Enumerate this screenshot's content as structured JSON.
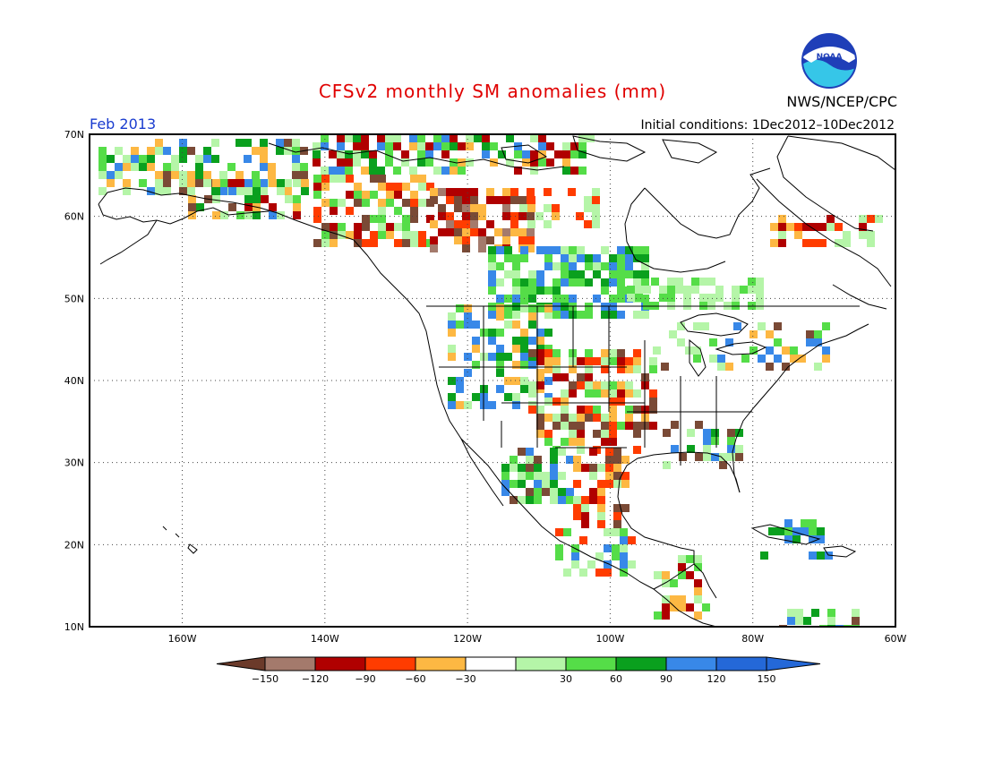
{
  "title": "CFSv2 monthly SM anomalies (mm)",
  "org": "NWS/NCEP/CPC",
  "logo_text": "NOAA",
  "month": "Feb 2013",
  "init_conditions": "Initial conditions: 1Dec2012–10Dec2012",
  "map": {
    "lon_range": [
      -173,
      -60
    ],
    "lat_range": [
      10,
      70
    ],
    "lat_labels": [
      "70N",
      "60N",
      "50N",
      "40N",
      "30N",
      "20N",
      "10N"
    ],
    "lon_labels": [
      "160W",
      "140W",
      "120W",
      "100W",
      "80W",
      "60W"
    ],
    "lat_values": [
      70,
      60,
      50,
      40,
      30,
      20,
      10
    ],
    "lon_values": [
      -160,
      -140,
      -120,
      -100,
      -80,
      -60
    ]
  },
  "colorbar": {
    "labels": [
      "−150",
      "−120",
      "−90",
      "−60",
      "−30",
      "30",
      "60",
      "90",
      "120",
      "150"
    ],
    "colors": [
      "#6b3a2a",
      "#a47a6c",
      "#b00000",
      "#ff3c00",
      "#fdb843",
      "#ffffff",
      "#b5f5a8",
      "#55dd48",
      "#0aa01e",
      "#3888e8",
      "#2468d8",
      "#4f2c1e"
    ]
  },
  "colors": {
    "brown": "#7a4a36",
    "tan": "#a47a6c",
    "darkred": "#b00000",
    "red": "#ff3c00",
    "orange": "#fdb843",
    "lightgreen": "#b5f5a8",
    "green": "#55dd48",
    "darkgreen": "#0aa01e",
    "blue": "#3888e8"
  }
}
